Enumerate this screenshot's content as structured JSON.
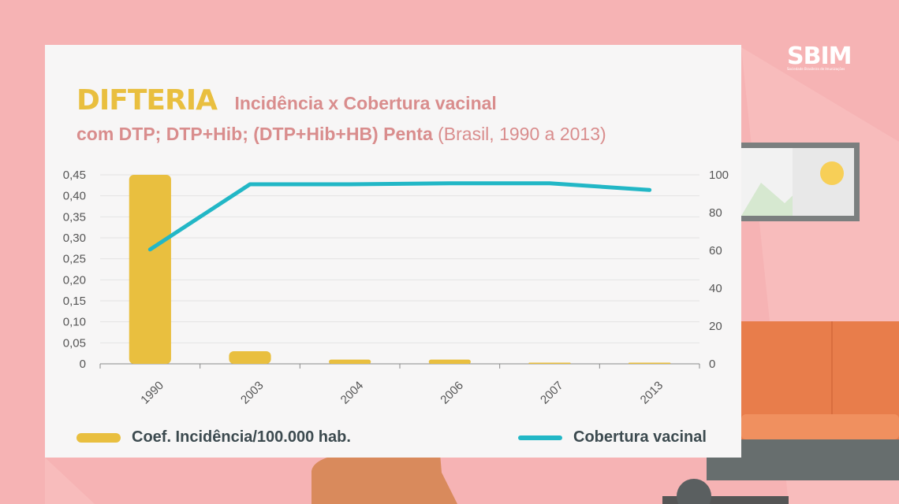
{
  "header": {
    "title": "DIFTERIA",
    "subtitle_line1": "Incidência x Cobertura vacinal",
    "subtitle_line2_bold": "com DTP; DTP+Hib; (DTP+Hib+HB) Penta",
    "subtitle_line2_normal": "(Brasil, 1990 a 2013)"
  },
  "logo": {
    "text": "SBIM",
    "tagline": "Sociedade Brasileira de Imunizações"
  },
  "colors": {
    "bar": "#e9bf3f",
    "line": "#22b7c6",
    "background": "#f6b3b4",
    "card": "#f7f6f6"
  },
  "chart_data": {
    "type": "bar+line",
    "categories": [
      "1990",
      "2003",
      "2004",
      "2006",
      "2007",
      "2013"
    ],
    "series": [
      {
        "name": "Coef. Incidência/100.000 hab.",
        "type": "bar",
        "axis": "left",
        "values": [
          0.45,
          0.03,
          0.01,
          0.01,
          0.002,
          0.002
        ]
      },
      {
        "name": "Cobertura vacinal",
        "type": "line",
        "axis": "right",
        "values": [
          60.5,
          95,
          95,
          95.5,
          95.5,
          92
        ]
      }
    ],
    "y_left": {
      "min": 0,
      "max": 0.45,
      "ticks": [
        "0",
        "0,05",
        "0,10",
        "0,15",
        "0,20",
        "0,25",
        "0,30",
        "0,35",
        "0,40",
        "0,45"
      ]
    },
    "y_right": {
      "min": 0,
      "max": 100,
      "ticks": [
        "0",
        "20",
        "40",
        "60",
        "80",
        "100"
      ]
    },
    "grid": true,
    "legend_position": "bottom"
  }
}
